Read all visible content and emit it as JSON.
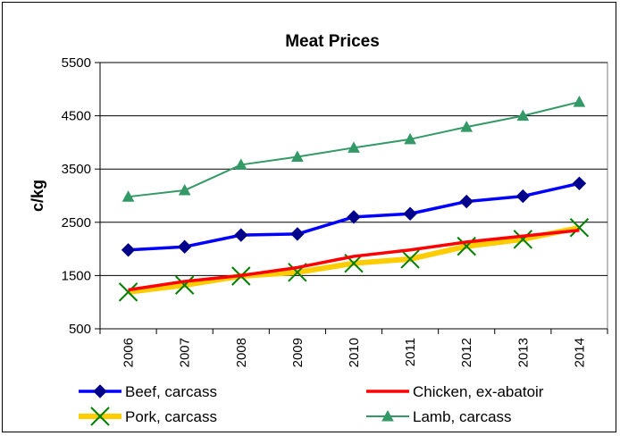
{
  "chart_data": {
    "type": "line",
    "title": "Meat Prices",
    "xlabel": "",
    "ylabel": "c/kg",
    "categories": [
      "2006",
      "2007",
      "2008",
      "2009",
      "2010",
      "2011",
      "2012",
      "2013",
      "2014"
    ],
    "ylim": [
      500,
      5500
    ],
    "yticks": [
      500,
      1500,
      2500,
      3500,
      4500,
      5500
    ],
    "grid": "horizontal",
    "legend_position": "bottom",
    "series": [
      {
        "name": "Beef, carcass",
        "color": "#0000ff",
        "marker": "diamond",
        "values": [
          1980,
          2040,
          2260,
          2280,
          2600,
          2660,
          2890,
          2990,
          3230
        ]
      },
      {
        "name": "Chicken, ex-abatoir",
        "color": "#ff0000",
        "marker": "none",
        "values": [
          1230,
          1390,
          1500,
          1650,
          1860,
          1980,
          2130,
          2240,
          2350
        ]
      },
      {
        "name": "Pork, carcass",
        "color": "#ffcc00",
        "marker": "x",
        "marker_color": "#008000",
        "values": [
          1190,
          1320,
          1490,
          1560,
          1730,
          1810,
          2050,
          2180,
          2400
        ]
      },
      {
        "name": "Lamb, carcass",
        "color": "#339966",
        "marker": "triangle",
        "values": [
          2980,
          3100,
          3580,
          3730,
          3900,
          4060,
          4290,
          4500,
          4760
        ]
      }
    ]
  }
}
